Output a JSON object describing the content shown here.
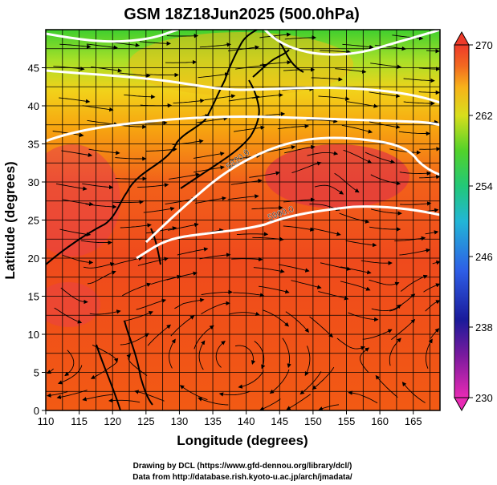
{
  "title": "GSM 18Z18Jun2025 (500.0hPa)",
  "axes": {
    "xlabel": "Longitude (degrees)",
    "ylabel": "Latitude  (degrees)",
    "xlim": [
      110,
      169
    ],
    "ylim": [
      0,
      50
    ],
    "xticks": [
      "110",
      "115",
      "120",
      "125",
      "130",
      "135",
      "140",
      "145",
      "150",
      "155",
      "160",
      "165"
    ],
    "yticks": [
      "0",
      "5",
      "10",
      "15",
      "20",
      "25",
      "30",
      "35",
      "40",
      "45"
    ]
  },
  "colorbar": {
    "ticks": [
      "270",
      "262",
      "254",
      "246",
      "238",
      "230"
    ],
    "min": 230,
    "max": 270
  },
  "contours": {
    "label_5820": "5820.0",
    "label_5900": "5900.0"
  },
  "credits": {
    "line1": "Drawing by DCL (https://www.gfd-dennou.org/library/dcl/)",
    "line2": "Data from http://database.rish.kyoto-u.ac.jp/arch/jmadata/"
  },
  "chart_data": {
    "type": "heatmap",
    "title": "GSM 18Z18Jun2025 (500.0hPa)",
    "xlabel": "Longitude (degrees)",
    "ylabel": "Latitude  (degrees)",
    "xlim": [
      110,
      169
    ],
    "ylim": [
      0,
      50
    ],
    "colorbar_range": [
      230,
      270
    ],
    "colorbar_ticks": [
      230,
      238,
      246,
      254,
      262,
      270
    ],
    "grid": true,
    "overlays": [
      "streamlines",
      "coastlines",
      "geopotential height contours"
    ],
    "contour_labels": [
      "5820.0",
      "5900.0"
    ]
  }
}
